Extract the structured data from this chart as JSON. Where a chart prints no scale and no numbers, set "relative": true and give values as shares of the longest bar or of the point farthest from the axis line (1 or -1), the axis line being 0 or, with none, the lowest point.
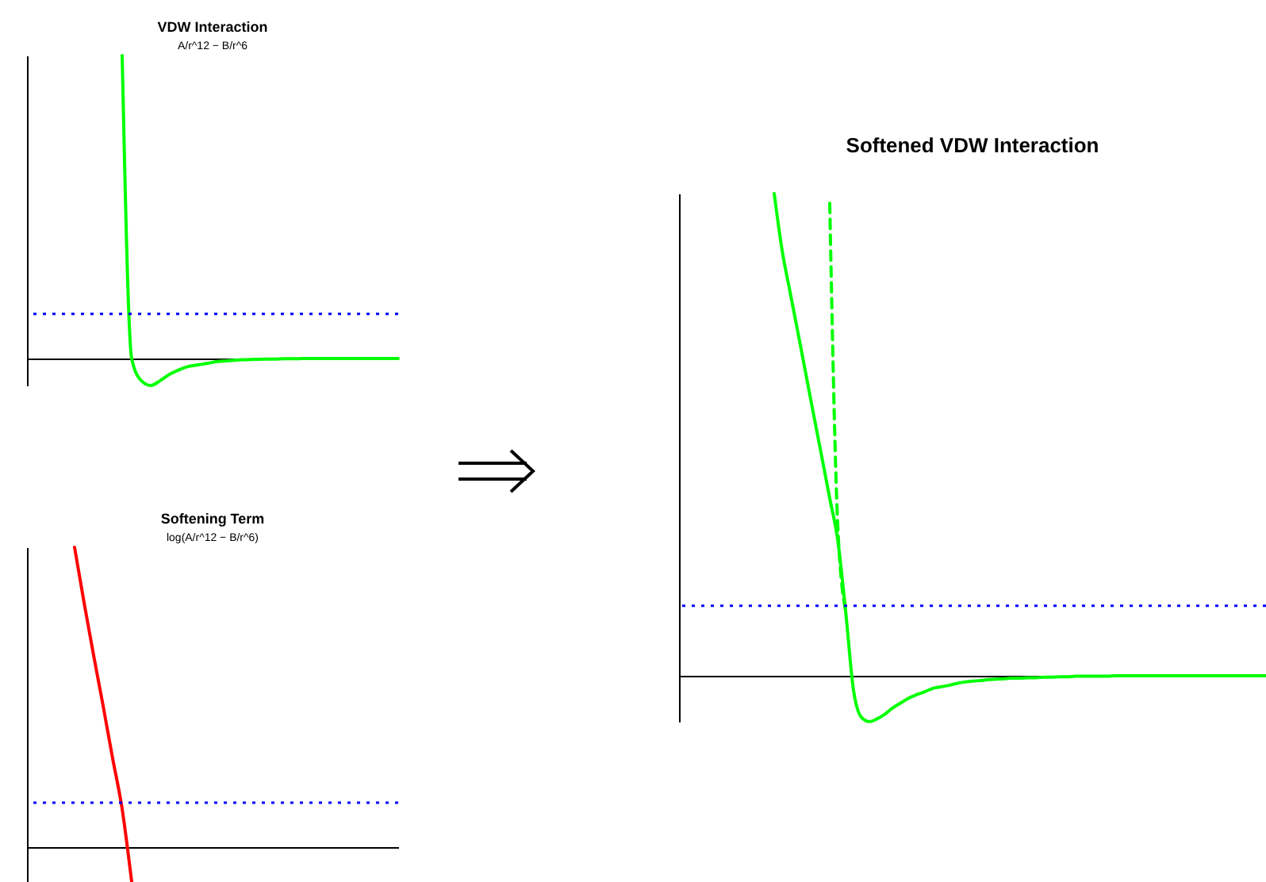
{
  "chart_data": [
    {
      "type": "line",
      "title": "VDW Interaction",
      "subtitle": "A/r^12 − B/r^6",
      "relative": true,
      "categories": [
        null,
        null,
        null,
        null,
        null,
        null,
        null,
        null,
        null,
        null,
        null,
        null,
        null,
        null,
        null,
        null,
        null,
        null,
        null,
        null,
        null,
        null,
        null,
        null,
        null,
        null,
        null,
        null,
        null,
        null,
        null,
        null,
        null,
        null,
        null,
        null,
        null,
        null,
        null,
        null
      ],
      "series": [
        {
          "color": "#00ff00",
          "values": [
            null,
            null,
            null,
            null,
            null,
            null,
            null,
            null,
            null,
            null,
            1,
            0,
            -0.073,
            -0.089,
            -0.073,
            -0.052,
            -0.037,
            -0.026,
            -0.021,
            -0.016,
            -0.01,
            -0.008,
            -0.005,
            -0.004,
            -0.003,
            -0.002,
            -0.002,
            -0.001,
            -0.001,
            0,
            0,
            0,
            0,
            0,
            0,
            0,
            0,
            0,
            0,
            0
          ]
        }
      ],
      "ref_lines": [
        {
          "axis": "y",
          "value": 0.147,
          "color": "#0000ff",
          "line_style": "dotted"
        }
      ]
    },
    {
      "type": "line",
      "title": "Softening Term",
      "subtitle": "log(A/r^12 − B/r^6)",
      "relative": true,
      "categories": [
        null,
        null,
        null,
        null,
        null,
        null,
        null,
        null,
        null,
        null,
        null,
        null,
        null,
        null,
        null,
        null,
        null,
        null,
        null,
        null,
        null,
        null,
        null,
        null,
        null,
        null,
        null,
        null,
        null,
        null,
        null,
        null,
        null,
        null,
        null,
        null,
        null,
        null,
        null,
        null
      ],
      "series": [
        {
          "color": "#ff0000",
          "values": [
            null,
            null,
            null,
            null,
            null,
            1,
            0.815,
            0.64,
            0.471,
            0.296,
            0.127,
            -0.116,
            null,
            null,
            null,
            null,
            null,
            null,
            null,
            null,
            null,
            null,
            null,
            null,
            null,
            null,
            null,
            null,
            null,
            null,
            null,
            null,
            null,
            null,
            null,
            null,
            null,
            null,
            null,
            null
          ]
        }
      ],
      "ref_lines": [
        {
          "axis": "y",
          "value": 0.148,
          "color": "#0000ff",
          "line_style": "dotted"
        }
      ]
    },
    {
      "type": "line",
      "title": "Softened VDW Interaction",
      "relative": true,
      "categories": [
        null,
        null,
        null,
        null,
        null,
        null,
        null,
        null,
        null,
        null,
        null,
        null,
        null,
        null,
        null,
        null,
        null,
        null,
        null,
        null,
        null,
        null,
        null,
        null,
        null,
        null,
        null,
        null,
        null,
        null,
        null,
        null,
        null,
        null,
        null,
        null,
        null,
        null,
        null,
        null,
        null,
        null,
        null,
        null,
        null,
        null,
        null,
        null,
        null,
        null,
        null,
        null,
        null,
        null,
        null,
        null,
        null,
        null,
        null,
        null,
        null,
        null,
        null,
        null,
        null,
        null,
        null,
        null,
        null,
        null,
        null,
        null,
        null,
        null,
        null
      ],
      "series": [
        {
          "color": "#00ff00",
          "line_style": "solid",
          "values": [
            null,
            null,
            null,
            null,
            null,
            null,
            null,
            null,
            null,
            null,
            null,
            null,
            1,
            0.882,
            0.796,
            0.711,
            0.625,
            0.539,
            0.454,
            0.368,
            0.283,
            0.135,
            -0.03,
            -0.086,
            -0.095,
            -0.089,
            -0.079,
            -0.066,
            -0.056,
            -0.046,
            -0.039,
            -0.033,
            -0.026,
            -0.023,
            -0.02,
            -0.016,
            -0.013,
            -0.011,
            -0.01,
            -0.008,
            -0.007,
            -0.006,
            -0.005,
            -0.005,
            -0.004,
            -0.004,
            -0.003,
            -0.003,
            -0.002,
            -0.002,
            -0.001,
            -0.001,
            -0.001,
            -0.001,
            -0.001,
            0,
            0,
            0,
            0,
            0,
            0,
            0,
            0,
            0,
            0,
            0,
            0,
            0,
            0,
            0,
            0,
            0,
            0,
            0,
            0
          ]
        },
        {
          "color": "#00ff00",
          "line_style": "dashed",
          "values": [
            null,
            null,
            null,
            null,
            null,
            null,
            null,
            null,
            null,
            null,
            null,
            null,
            null,
            null,
            null,
            null,
            null,
            null,
            null,
            0.98,
            0.316,
            0.135,
            null,
            null,
            null,
            null,
            null,
            null,
            null,
            null,
            null,
            null,
            null,
            null,
            null,
            null,
            null,
            null,
            null,
            null,
            null,
            null,
            null,
            null,
            null,
            null,
            null,
            null,
            null,
            null,
            null,
            null,
            null,
            null,
            null,
            null,
            null,
            null,
            null,
            null,
            null,
            null,
            null,
            null,
            null,
            null,
            null,
            null,
            null,
            null,
            null,
            null,
            null,
            null,
            null
          ]
        }
      ],
      "ref_lines": [
        {
          "axis": "y",
          "value": 0.145,
          "color": "#0000ff",
          "line_style": "dotted"
        }
      ]
    }
  ]
}
